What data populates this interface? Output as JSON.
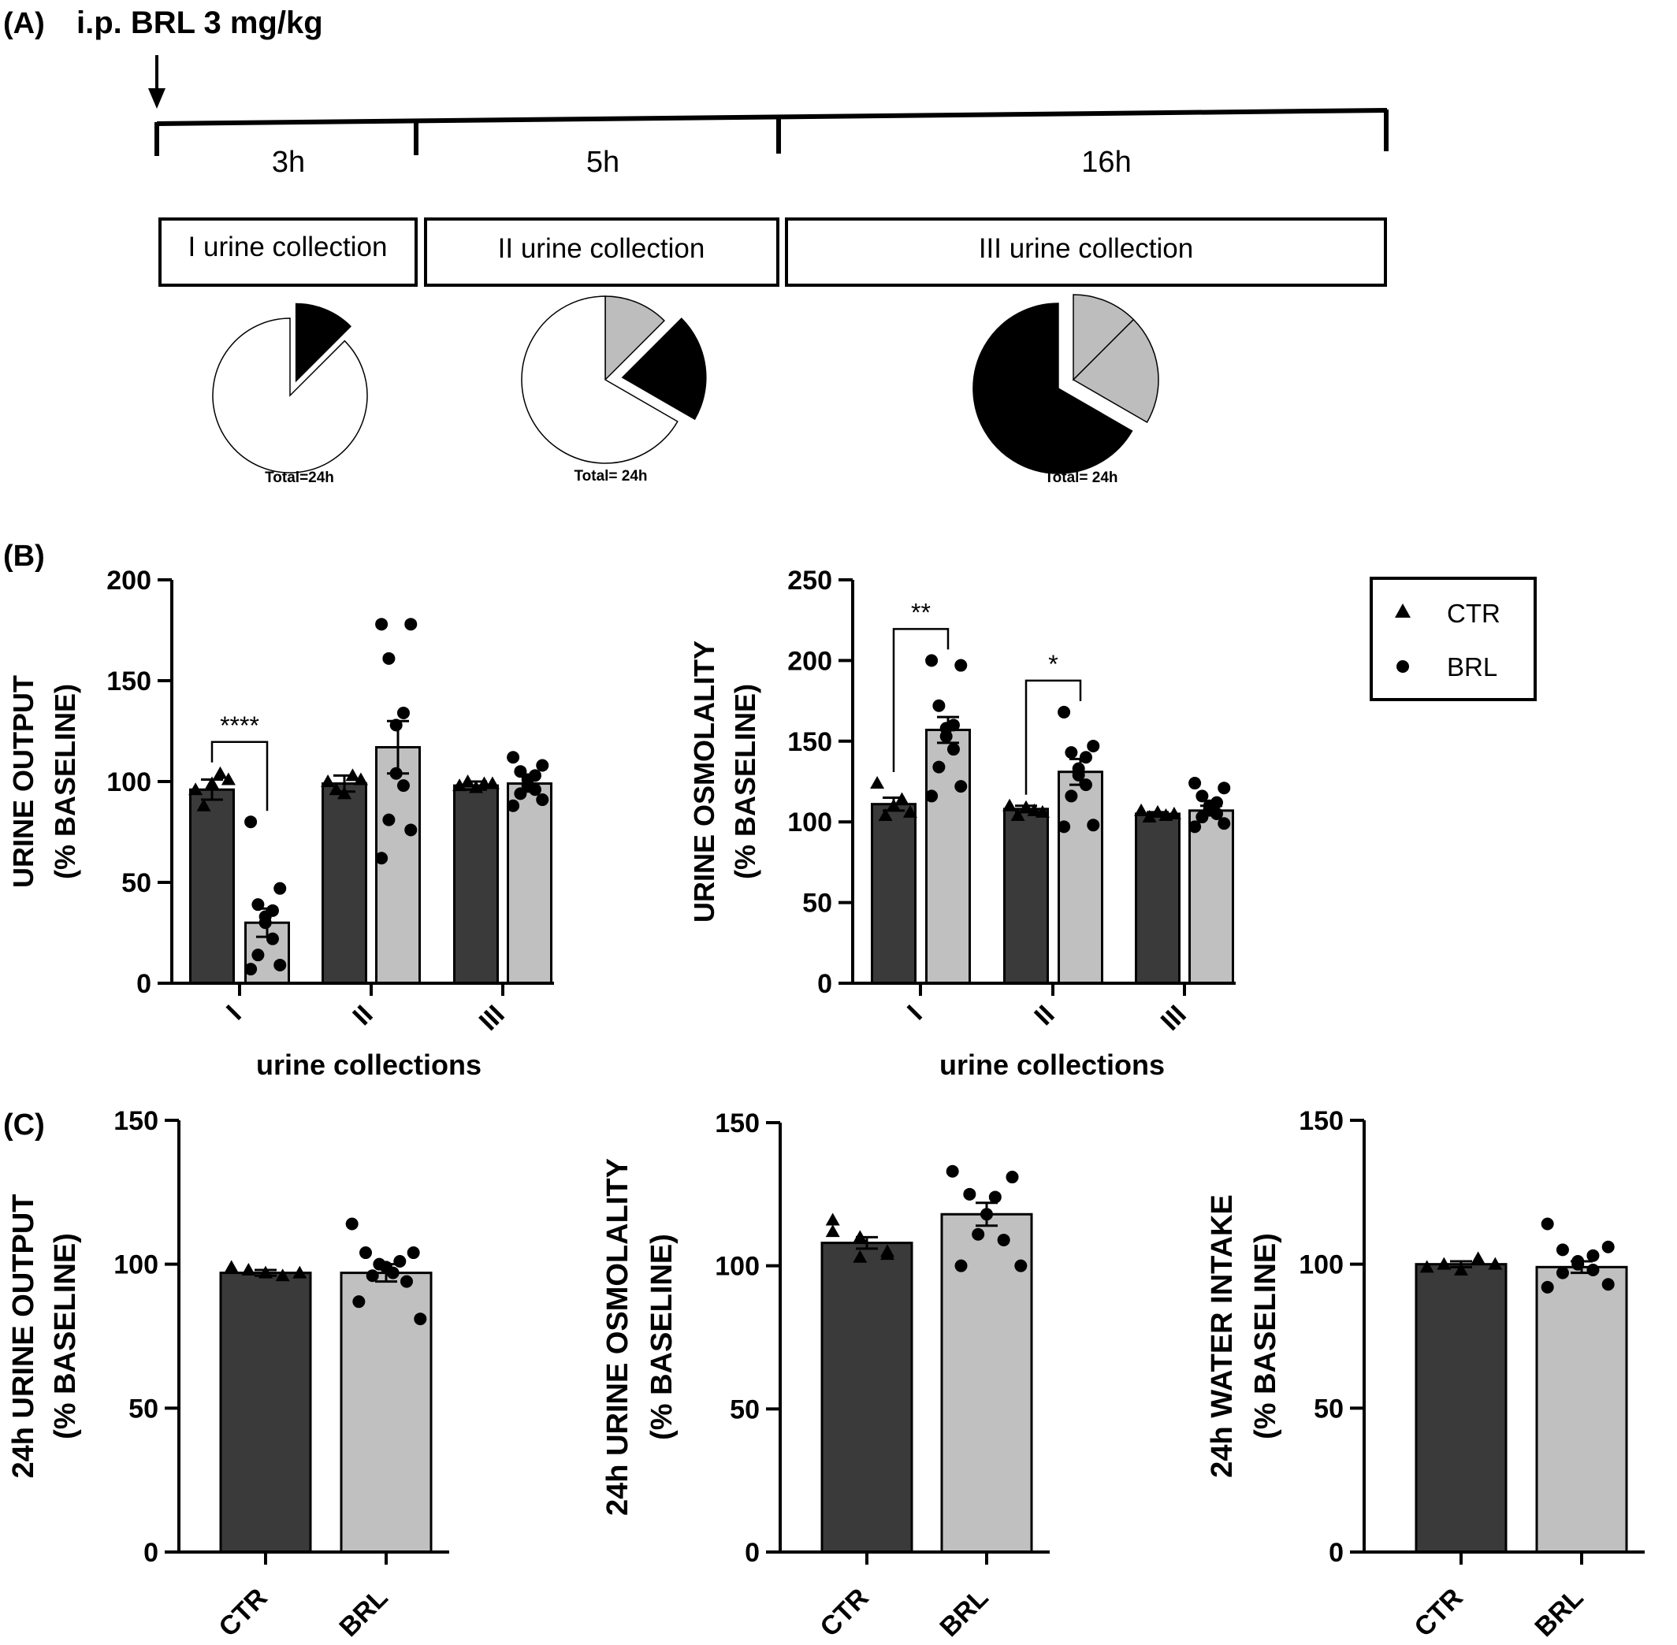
{
  "panel_labels": {
    "a": "(A)",
    "b": "(B)",
    "c": "(C)"
  },
  "timeline": {
    "injection_label": "i.p. BRL 3 mg/kg",
    "segments": [
      {
        "duration": "3h",
        "label": "I urine collection",
        "hours": 3
      },
      {
        "duration": "5h",
        "label": "II urine collection",
        "hours": 5
      },
      {
        "duration": "16h",
        "label": "III urine collection",
        "hours": 16
      }
    ]
  },
  "colors": {
    "ctr_bar": "#3a3a3a",
    "brl_bar": "#c0c0c0",
    "pie_black": "#000000",
    "pie_gray": "#bdbdbd",
    "pie_white": "#ffffff"
  },
  "legend": {
    "entries": [
      {
        "label": "CTR",
        "marker": "triangle"
      },
      {
        "label": "BRL",
        "marker": "circle"
      }
    ]
  },
  "chart_data": [
    {
      "id": "pie1",
      "type": "pie",
      "caption": "Total=24h",
      "slices": [
        {
          "name": "I",
          "hours": 3,
          "fill": "black",
          "exploded": true
        },
        {
          "name": "rest",
          "hours": 21,
          "fill": "white",
          "exploded": false
        }
      ]
    },
    {
      "id": "pie2",
      "type": "pie",
      "caption": "Total= 24h",
      "slices": [
        {
          "name": "I",
          "hours": 3,
          "fill": "gray",
          "exploded": false
        },
        {
          "name": "II",
          "hours": 5,
          "fill": "black",
          "exploded": true
        },
        {
          "name": "rest",
          "hours": 16,
          "fill": "white",
          "exploded": false
        }
      ]
    },
    {
      "id": "pie3",
      "type": "pie",
      "caption": "Total= 24h",
      "slices": [
        {
          "name": "I",
          "hours": 3,
          "fill": "gray",
          "exploded": false
        },
        {
          "name": "II",
          "hours": 5,
          "fill": "gray",
          "exploded": false
        },
        {
          "name": "III",
          "hours": 16,
          "fill": "black",
          "exploded": true
        }
      ]
    },
    {
      "id": "b1",
      "type": "bar",
      "ylabel_lines": [
        "URINE OUTPUT",
        "(% BASELINE)"
      ],
      "xlabel": "urine collections",
      "ylim": [
        0,
        200
      ],
      "yticks": [
        0,
        50,
        100,
        150,
        200
      ],
      "categories": [
        "I",
        "II",
        "III"
      ],
      "series": [
        {
          "name": "CTR",
          "means": [
            96,
            99,
            98
          ],
          "sem": [
            5,
            4,
            2
          ],
          "points": [
            [
              96,
              104,
              99,
              88,
              101
            ],
            [
              100,
              103,
              94,
              96,
              101
            ],
            [
              98,
              99,
              97,
              100,
              99
            ]
          ]
        },
        {
          "name": "BRL",
          "means": [
            30,
            117,
            99
          ],
          "sem": [
            7,
            13,
            4
          ],
          "points": [
            [
              80,
              47,
              39,
              36,
              33,
              30,
              22,
              14,
              9,
              7
            ],
            [
              178,
              178,
              161,
              134,
              128,
              104,
              98,
              81,
              76,
              62
            ],
            [
              112,
              108,
              105,
              103,
              101,
              98,
              96,
              94,
              91,
              88
            ]
          ]
        }
      ],
      "significance": [
        {
          "category": "I",
          "label": "****"
        }
      ]
    },
    {
      "id": "b2",
      "type": "bar",
      "ylabel_lines": [
        "URINE OSMOLALITY",
        "(% BASELINE)"
      ],
      "xlabel": "urine collections",
      "ylim": [
        0,
        250
      ],
      "yticks": [
        0,
        50,
        100,
        150,
        200,
        250
      ],
      "categories": [
        "I",
        "II",
        "III"
      ],
      "series": [
        {
          "name": "CTR",
          "means": [
            111,
            108,
            105
          ],
          "sem": [
            4,
            2,
            1
          ],
          "points": [
            [
              124,
              114,
              110,
              104,
              106
            ],
            [
              110,
              107,
              109,
              104,
              106
            ],
            [
              107,
              104,
              106,
              103,
              105
            ]
          ]
        },
        {
          "name": "BRL",
          "means": [
            157,
            131,
            107
          ],
          "sem": [
            8,
            8,
            3
          ],
          "points": [
            [
              200,
              197,
              172,
              160,
              158,
              153,
              145,
              134,
              122,
              116
            ],
            [
              168,
              147,
              143,
              140,
              133,
              129,
              123,
              116,
              98,
              97
            ],
            [
              124,
              121,
              116,
              112,
              110,
              108,
              105,
              103,
              99,
              97
            ]
          ]
        }
      ],
      "significance": [
        {
          "category": "I",
          "label": "**"
        },
        {
          "category": "II",
          "label": "*"
        }
      ]
    },
    {
      "id": "c1",
      "type": "bar",
      "ylabel_lines": [
        "24h URINE OUTPUT",
        "(% BASELINE)"
      ],
      "ylim": [
        0,
        150
      ],
      "yticks": [
        0,
        50,
        100,
        150
      ],
      "categories": [
        "CTR",
        "BRL"
      ],
      "series": [
        {
          "name": "value",
          "means": [
            97,
            97
          ],
          "sem": [
            1,
            3
          ],
          "points": [
            [
              99,
              96,
              97,
              98,
              97
            ],
            [
              114,
              104,
              104,
              101,
              100,
              99,
              97,
              96,
              94,
              87,
              81
            ]
          ]
        }
      ]
    },
    {
      "id": "c2",
      "type": "bar",
      "ylabel_lines": [
        "24h URINE OSMOLALITY",
        "(% BASELINE)"
      ],
      "ylim": [
        0,
        150
      ],
      "yticks": [
        0,
        50,
        100,
        150
      ],
      "categories": [
        "CTR",
        "BRL"
      ],
      "series": [
        {
          "name": "value",
          "means": [
            108,
            118
          ],
          "sem": [
            2,
            4
          ],
          "points": [
            [
              112,
              105,
              103,
              110,
              104,
              116
            ],
            [
              133,
              131,
              125,
              124,
              118,
              111,
              109,
              100,
              100
            ]
          ]
        }
      ]
    },
    {
      "id": "c3",
      "type": "bar",
      "ylabel_lines": [
        "24h WATER INTAKE",
        "(% BASELINE)"
      ],
      "ylim": [
        0,
        150
      ],
      "yticks": [
        0,
        50,
        100,
        150
      ],
      "categories": [
        "CTR",
        "BRL"
      ],
      "series": [
        {
          "name": "value",
          "means": [
            100,
            99
          ],
          "sem": [
            1,
            2
          ],
          "points": [
            [
              99,
              102,
              98,
              100,
              100
            ],
            [
              114,
              106,
              105,
              103,
              101,
              100,
              98,
              97,
              93,
              92
            ]
          ]
        }
      ]
    }
  ]
}
